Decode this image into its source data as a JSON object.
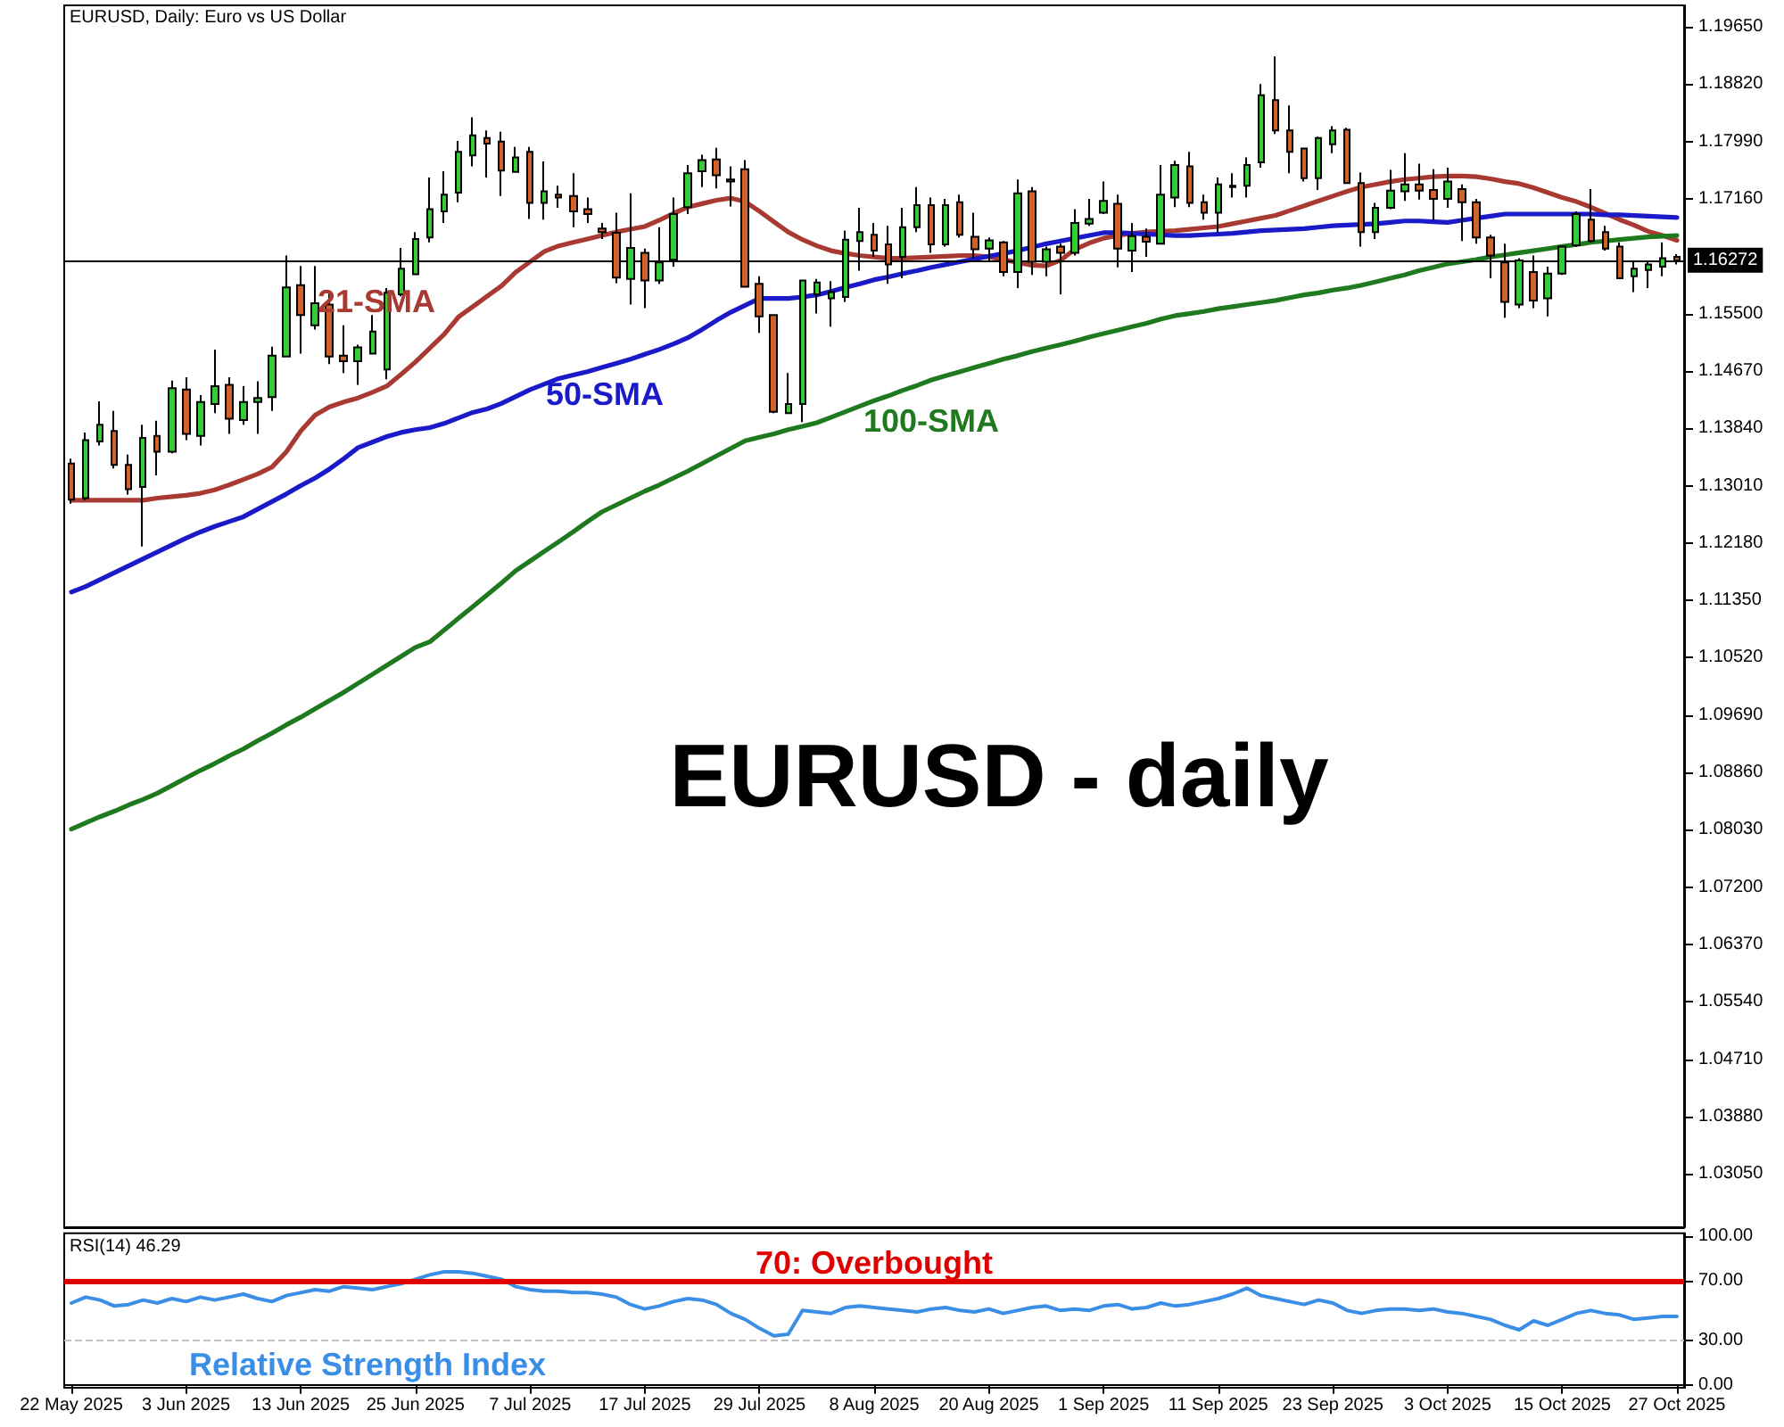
{
  "chart_data": [
    {
      "type": "candlestick",
      "title": "EURUSD, Daily: Euro vs US Dollar",
      "annotations": [
        "EURUSD - daily"
      ],
      "tick_labels": "y",
      "marker": "none",
      "categories": [
        null,
        null,
        null,
        null,
        null,
        null,
        null,
        null,
        null,
        null,
        null,
        null,
        null,
        null,
        null,
        null,
        null,
        null,
        null,
        null,
        null,
        null,
        null,
        null,
        null,
        null,
        null,
        null,
        null,
        null,
        null,
        null,
        null,
        null,
        null,
        null,
        null,
        null,
        null,
        null,
        null,
        null,
        null,
        null,
        null,
        null,
        null,
        null,
        null,
        null,
        null,
        null,
        null,
        null,
        null,
        null,
        null,
        null,
        null,
        null,
        null,
        null,
        null,
        null,
        null,
        null,
        null,
        null,
        null,
        null,
        null,
        null,
        null,
        null,
        null,
        null,
        null,
        null,
        null,
        null,
        null,
        null,
        null,
        null,
        null,
        null,
        null,
        null,
        null,
        null,
        null,
        null,
        null,
        null,
        null,
        null,
        null,
        null,
        null,
        null,
        null,
        null,
        null,
        null,
        null,
        null,
        null,
        null,
        null,
        null,
        null,
        null,
        null
      ],
      "ylim": [
        1.0228,
        1.1996
      ],
      "yticks": [
        {
          "value": 1.1965,
          "label": "1.19650"
        },
        {
          "value": 1.1882,
          "label": "1.18820"
        },
        {
          "value": 1.1799,
          "label": "1.17990"
        },
        {
          "value": 1.1716,
          "label": "1.17160"
        },
        {
          "value": 1.155,
          "label": "1.15500"
        },
        {
          "value": 1.1467,
          "label": "1.14670"
        },
        {
          "value": 1.1384,
          "label": "1.13840"
        },
        {
          "value": 1.1301,
          "label": "1.13010"
        },
        {
          "value": 1.1218,
          "label": "1.12180"
        },
        {
          "value": 1.1135,
          "label": "1.11350"
        },
        {
          "value": 1.1052,
          "label": "1.10520"
        },
        {
          "value": 1.0969,
          "label": "1.09690"
        },
        {
          "value": 1.0886,
          "label": "1.08860"
        },
        {
          "value": 1.0803,
          "label": "1.08030"
        },
        {
          "value": 1.072,
          "label": "1.07200"
        },
        {
          "value": 1.0637,
          "label": "1.06370"
        },
        {
          "value": 1.0554,
          "label": "1.05540"
        },
        {
          "value": 1.0471,
          "label": "1.04710"
        },
        {
          "value": 1.0388,
          "label": "1.03880"
        },
        {
          "value": 1.0305,
          "label": "1.03050"
        }
      ],
      "ref_lines": [
        {
          "axis": "y",
          "value": 1.16272,
          "label": "1.16272",
          "color": "#000000"
        }
      ],
      "ohlc": [
        [
          1.1333,
          1.134,
          1.1275,
          1.1281
        ],
        [
          1.1283,
          1.1378,
          1.128,
          1.1367
        ],
        [
          1.1365,
          1.1423,
          1.1359,
          1.1389
        ],
        [
          1.138,
          1.1409,
          1.1326,
          1.1331
        ],
        [
          1.1331,
          1.1346,
          1.1288,
          1.1296
        ],
        [
          1.1299,
          1.1389,
          1.1213,
          1.137
        ],
        [
          1.1373,
          1.1395,
          1.1316,
          1.135
        ],
        [
          1.135,
          1.1453,
          1.1348,
          1.1442
        ],
        [
          1.144,
          1.1458,
          1.1367,
          1.1376
        ],
        [
          1.1373,
          1.1432,
          1.1359,
          1.1422
        ],
        [
          1.1419,
          1.1498,
          1.1406,
          1.1445
        ],
        [
          1.1447,
          1.1458,
          1.1376,
          1.1398
        ],
        [
          1.1396,
          1.1445,
          1.1389,
          1.1422
        ],
        [
          1.1422,
          1.1452,
          1.1376,
          1.1428
        ],
        [
          1.1429,
          1.1502,
          1.1409,
          1.1489
        ],
        [
          1.1488,
          1.1634,
          1.1488,
          1.1588
        ],
        [
          1.1591,
          1.1619,
          1.1492,
          1.1548
        ],
        [
          1.1533,
          1.1619,
          1.1527,
          1.1565
        ],
        [
          1.1563,
          1.1582,
          1.1477,
          1.1488
        ],
        [
          1.1489,
          1.1533,
          1.1464,
          1.1481
        ],
        [
          1.1481,
          1.1505,
          1.1447,
          1.1501
        ],
        [
          1.1492,
          1.1548,
          1.1492,
          1.1524
        ],
        [
          1.1469,
          1.1587,
          1.1455,
          1.158
        ],
        [
          1.1578,
          1.1645,
          1.1575,
          1.1615
        ],
        [
          1.1607,
          1.1668,
          1.1607,
          1.1658
        ],
        [
          1.166,
          1.1747,
          1.1653,
          1.1701
        ],
        [
          1.1698,
          1.1756,
          1.1681,
          1.1722
        ],
        [
          1.1725,
          1.18,
          1.1711,
          1.1784
        ],
        [
          1.1779,
          1.1834,
          1.1763,
          1.1808
        ],
        [
          1.1804,
          1.1815,
          1.1747,
          1.1796
        ],
        [
          1.1799,
          1.1813,
          1.172,
          1.1757
        ],
        [
          1.1755,
          1.1791,
          1.1755,
          1.1776
        ],
        [
          1.1784,
          1.1791,
          1.1687,
          1.171
        ],
        [
          1.171,
          1.177,
          1.1686,
          1.1727
        ],
        [
          1.1722,
          1.1735,
          1.1703,
          1.1718
        ],
        [
          1.172,
          1.1753,
          1.1675,
          1.1698
        ],
        [
          1.1701,
          1.1718,
          1.1681,
          1.1694
        ],
        [
          1.1673,
          1.1681,
          1.1658,
          1.1668
        ],
        [
          1.1667,
          1.1696,
          1.1594,
          1.1602
        ],
        [
          1.16,
          1.1724,
          1.1563,
          1.1645
        ],
        [
          1.1638,
          1.1644,
          1.1558,
          1.1598
        ],
        [
          1.1598,
          1.1675,
          1.1593,
          1.1624
        ],
        [
          1.1628,
          1.1718,
          1.1618,
          1.1694
        ],
        [
          1.1704,
          1.1765,
          1.1694,
          1.1753
        ],
        [
          1.1756,
          1.178,
          1.1733,
          1.1772
        ],
        [
          1.1773,
          1.179,
          1.1731,
          1.175
        ],
        [
          1.1744,
          1.1763,
          1.1705,
          1.1741
        ],
        [
          1.1759,
          1.1772,
          1.1589,
          1.1589
        ],
        [
          1.1593,
          1.1604,
          1.1522,
          1.1546
        ],
        [
          1.1548,
          1.1549,
          1.1406,
          1.1408
        ],
        [
          1.1406,
          1.1464,
          1.1406,
          1.1419
        ],
        [
          1.1419,
          1.1598,
          1.1393,
          1.1598
        ],
        [
          1.1578,
          1.16,
          1.155,
          1.1595
        ],
        [
          1.1572,
          1.1597,
          1.1531,
          1.1581
        ],
        [
          1.1574,
          1.167,
          1.1567,
          1.1657
        ],
        [
          1.1655,
          1.1703,
          1.1612,
          1.1668
        ],
        [
          1.1664,
          1.1681,
          1.1632,
          1.1641
        ],
        [
          1.165,
          1.1677,
          1.1593,
          1.1621
        ],
        [
          1.1632,
          1.1703,
          1.1601,
          1.1675
        ],
        [
          1.1675,
          1.1733,
          1.1668,
          1.1707
        ],
        [
          1.1707,
          1.1718,
          1.1638,
          1.165
        ],
        [
          1.165,
          1.1716,
          1.1647,
          1.1707
        ],
        [
          1.1711,
          1.1722,
          1.166,
          1.1664
        ],
        [
          1.1661,
          1.1696,
          1.163,
          1.1643
        ],
        [
          1.1644,
          1.166,
          1.1625,
          1.1656
        ],
        [
          1.1653,
          1.1655,
          1.1604,
          1.161
        ],
        [
          1.161,
          1.1744,
          1.1587,
          1.1724
        ],
        [
          1.1727,
          1.1733,
          1.1606,
          1.1625
        ],
        [
          1.1625,
          1.1647,
          1.1604,
          1.1643
        ],
        [
          1.1647,
          1.1651,
          1.1578,
          1.1638
        ],
        [
          1.1638,
          1.1701,
          1.1634,
          1.1681
        ],
        [
          1.168,
          1.1716,
          1.1677,
          1.1687
        ],
        [
          1.1696,
          1.1741,
          1.1694,
          1.1713
        ],
        [
          1.1709,
          1.1722,
          1.1617,
          1.1644
        ],
        [
          1.1641,
          1.1681,
          1.161,
          1.1662
        ],
        [
          1.1661,
          1.1673,
          1.1632,
          1.1654
        ],
        [
          1.1651,
          1.1765,
          1.165,
          1.1722
        ],
        [
          1.1718,
          1.1771,
          1.1704,
          1.1765
        ],
        [
          1.1763,
          1.1784,
          1.1704,
          1.171
        ],
        [
          1.1711,
          1.1722,
          1.1686,
          1.1696
        ],
        [
          1.1696,
          1.1747,
          1.1668,
          1.1737
        ],
        [
          1.1735,
          1.1753,
          1.1718,
          1.1733
        ],
        [
          1.1735,
          1.1776,
          1.1718,
          1.1765
        ],
        [
          1.1769,
          1.1882,
          1.1761,
          1.1866
        ],
        [
          1.1859,
          1.1922,
          1.181,
          1.1815
        ],
        [
          1.1815,
          1.1851,
          1.1753,
          1.1784
        ],
        [
          1.1789,
          1.1789,
          1.1741,
          1.1746
        ],
        [
          1.1746,
          1.1806,
          1.1729,
          1.1804
        ],
        [
          1.1795,
          1.1821,
          1.1782,
          1.1815
        ],
        [
          1.1816,
          1.1819,
          1.1739,
          1.1739
        ],
        [
          1.1739,
          1.1754,
          1.1647,
          1.1668
        ],
        [
          1.1668,
          1.171,
          1.1658,
          1.1703
        ],
        [
          1.1703,
          1.1758,
          1.1701,
          1.1728
        ],
        [
          1.1727,
          1.1782,
          1.1713,
          1.1737
        ],
        [
          1.1737,
          1.1767,
          1.1715,
          1.1728
        ],
        [
          1.1729,
          1.1759,
          1.1685,
          1.1716
        ],
        [
          1.1716,
          1.1761,
          1.1703,
          1.1741
        ],
        [
          1.173,
          1.1737,
          1.1655,
          1.1711
        ],
        [
          1.1711,
          1.1716,
          1.1651,
          1.166
        ],
        [
          1.166,
          1.1664,
          1.1601,
          1.1634
        ],
        [
          1.1624,
          1.1651,
          1.1544,
          1.1567
        ],
        [
          1.1563,
          1.163,
          1.1558,
          1.1627
        ],
        [
          1.161,
          1.1634,
          1.1558,
          1.1569
        ],
        [
          1.1572,
          1.1618,
          1.1546,
          1.1608
        ],
        [
          1.1608,
          1.1647,
          1.1606,
          1.1647
        ],
        [
          1.1649,
          1.1698,
          1.1647,
          1.1694
        ],
        [
          1.1686,
          1.173,
          1.1653,
          1.1655
        ],
        [
          1.1668,
          1.1677,
          1.1641,
          1.1644
        ],
        [
          1.1647,
          1.1653,
          1.16,
          1.1601
        ],
        [
          1.1604,
          1.1625,
          1.1581,
          1.1615
        ],
        [
          1.1613,
          1.1627,
          1.1587,
          1.1621
        ],
        [
          1.1618,
          1.1653,
          1.1604,
          1.163
        ],
        [
          1.1632,
          1.1636,
          1.1621,
          1.1627
        ]
      ],
      "colors": [
        "#d2622a",
        "#33cc33",
        "#33cc33",
        "#d2622a",
        "#d2622a",
        "#33cc33",
        "#d2622a",
        "#33cc33",
        "#d2622a",
        "#33cc33",
        "#33cc33",
        "#d2622a",
        "#33cc33",
        "#33cc33",
        "#33cc33",
        "#33cc33",
        "#d2622a",
        "#33cc33",
        "#d2622a",
        "#d2622a",
        "#33cc33",
        "#33cc33",
        "#33cc33",
        "#33cc33",
        "#33cc33",
        "#33cc33",
        "#33cc33",
        "#33cc33",
        "#33cc33",
        "#d2622a",
        "#d2622a",
        "#33cc33",
        "#d2622a",
        "#33cc33",
        "#d2622a",
        "#d2622a",
        "#d2622a",
        "#d2622a",
        "#d2622a",
        "#33cc33",
        "#d2622a",
        "#33cc33",
        "#33cc33",
        "#33cc33",
        "#33cc33",
        "#d2622a",
        "#d2622a",
        "#d2622a",
        "#d2622a",
        "#d2622a",
        "#33cc33",
        "#33cc33",
        "#33cc33",
        "#33cc33",
        "#33cc33",
        "#33cc33",
        "#d2622a",
        "#d2622a",
        "#33cc33",
        "#33cc33",
        "#d2622a",
        "#33cc33",
        "#d2622a",
        "#d2622a",
        "#33cc33",
        "#d2622a",
        "#33cc33",
        "#d2622a",
        "#33cc33",
        "#d2622a",
        "#33cc33",
        "#33cc33",
        "#33cc33",
        "#d2622a",
        "#33cc33",
        "#d2622a",
        "#33cc33",
        "#33cc33",
        "#d2622a",
        "#d2622a",
        "#33cc33",
        "#d2622a",
        "#33cc33",
        "#33cc33",
        "#d2622a",
        "#d2622a",
        "#d2622a",
        "#33cc33",
        "#33cc33",
        "#d2622a",
        "#d2622a",
        "#33cc33",
        "#33cc33",
        "#33cc33",
        "#d2622a",
        "#d2622a",
        "#33cc33",
        "#d2622a",
        "#d2622a",
        "#d2622a",
        "#d2622a",
        "#33cc33",
        "#d2622a",
        "#33cc33",
        "#33cc33",
        "#33cc33",
        "#d2622a",
        "#d2622a",
        "#d2622a",
        "#33cc33",
        "#33cc33",
        "#33cc33",
        "#d2622a"
      ],
      "series": [
        {
          "type": "line",
          "name": "21-SMA",
          "color": "#a83a32",
          "values": [
            1.128,
            1.128,
            1.128,
            1.128,
            1.128,
            1.128,
            1.1283,
            1.1285,
            1.1287,
            1.129,
            1.1295,
            1.1302,
            1.131,
            1.1318,
            1.1328,
            1.135,
            1.138,
            1.1403,
            1.1415,
            1.1422,
            1.1428,
            1.1436,
            1.1445,
            1.1462,
            1.148,
            1.15,
            1.152,
            1.1545,
            1.156,
            1.1575,
            1.159,
            1.161,
            1.1625,
            1.164,
            1.1648,
            1.1653,
            1.1658,
            1.1663,
            1.1668,
            1.1672,
            1.1676,
            1.1685,
            1.1695,
            1.1704,
            1.1709,
            1.1714,
            1.1717,
            1.1712,
            1.1698,
            1.1683,
            1.1668,
            1.1657,
            1.1648,
            1.1641,
            1.1637,
            1.1634,
            1.1632,
            1.163,
            1.163,
            1.1631,
            1.1632,
            1.1633,
            1.1634,
            1.1634,
            1.1632,
            1.1628,
            1.1624,
            1.162,
            1.1619,
            1.1627,
            1.1643,
            1.1652,
            1.1659,
            1.1663,
            1.1666,
            1.1668,
            1.1669,
            1.167,
            1.1672,
            1.1674,
            1.1676,
            1.168,
            1.1684,
            1.1688,
            1.1692,
            1.1699,
            1.1706,
            1.1713,
            1.172,
            1.1727,
            1.1733,
            1.1737,
            1.1741,
            1.1744,
            1.1746,
            1.1748,
            1.1749,
            1.1749,
            1.1748,
            1.1745,
            1.1741,
            1.1738,
            1.1732,
            1.1725,
            1.1718,
            1.1712,
            1.1704,
            1.1695,
            1.1686,
            1.1678,
            1.1669,
            1.1663,
            1.1656
          ]
        },
        {
          "type": "line",
          "name": "50-SMA",
          "color": "#1a1ac8",
          "values": [
            1.1147,
            1.1155,
            1.1165,
            1.1175,
            1.1185,
            1.1195,
            1.1205,
            1.1215,
            1.1225,
            1.1234,
            1.1242,
            1.1249,
            1.1256,
            1.1267,
            1.1278,
            1.1289,
            1.1301,
            1.1312,
            1.1325,
            1.134,
            1.1356,
            1.1364,
            1.1372,
            1.1378,
            1.1382,
            1.1385,
            1.1391,
            1.1399,
            1.1407,
            1.1412,
            1.142,
            1.143,
            1.144,
            1.1448,
            1.1456,
            1.1461,
            1.1466,
            1.1472,
            1.1478,
            1.1484,
            1.1491,
            1.1498,
            1.1506,
            1.1515,
            1.1527,
            1.154,
            1.1552,
            1.1562,
            1.1572,
            1.1572,
            1.1572,
            1.1574,
            1.1577,
            1.1582,
            1.1588,
            1.1593,
            1.1599,
            1.1603,
            1.1608,
            1.1612,
            1.1617,
            1.1621,
            1.1625,
            1.1629,
            1.1633,
            1.1637,
            1.1641,
            1.1646,
            1.1651,
            1.1655,
            1.1659,
            1.1663,
            1.1667,
            1.1667,
            1.1666,
            1.1665,
            1.1664,
            1.1663,
            1.1663,
            1.1664,
            1.1665,
            1.1666,
            1.1668,
            1.167,
            1.1671,
            1.1672,
            1.1673,
            1.1675,
            1.1677,
            1.1678,
            1.1679,
            1.168,
            1.1682,
            1.1684,
            1.1684,
            1.1683,
            1.1682,
            1.1685,
            1.1688,
            1.1691,
            1.1694,
            1.1694,
            1.1694,
            1.1694,
            1.1694,
            1.1694,
            1.1694,
            1.1693,
            1.1693,
            1.1692,
            1.1691,
            1.169,
            1.1689
          ]
        },
        {
          "type": "line",
          "name": "100-SMA",
          "color": "#1f7a1f",
          "values": [
            1.0804,
            1.0813,
            1.0822,
            1.083,
            1.0839,
            1.0847,
            1.0856,
            1.0867,
            1.0878,
            1.0889,
            1.0899,
            1.091,
            1.092,
            1.0932,
            1.0943,
            1.0955,
            1.0966,
            1.0978,
            1.099,
            1.1002,
            1.1015,
            1.1028,
            1.1041,
            1.1054,
            1.1067,
            1.1075,
            1.1092,
            1.1109,
            1.1126,
            1.1143,
            1.116,
            1.1178,
            1.1192,
            1.1206,
            1.122,
            1.1234,
            1.1249,
            1.1263,
            1.1273,
            1.1283,
            1.1293,
            1.1302,
            1.1312,
            1.1322,
            1.1333,
            1.1344,
            1.1355,
            1.1366,
            1.1371,
            1.1376,
            1.1382,
            1.1387,
            1.1392,
            1.14,
            1.1408,
            1.1416,
            1.1424,
            1.1431,
            1.1439,
            1.1446,
            1.1454,
            1.146,
            1.1466,
            1.1472,
            1.1478,
            1.1484,
            1.1489,
            1.1495,
            1.15,
            1.1505,
            1.151,
            1.1516,
            1.1521,
            1.1526,
            1.1531,
            1.1536,
            1.1542,
            1.1547,
            1.155,
            1.1553,
            1.1557,
            1.156,
            1.1563,
            1.1566,
            1.1569,
            1.1573,
            1.1577,
            1.158,
            1.1584,
            1.1587,
            1.1591,
            1.1596,
            1.1601,
            1.1606,
            1.1612,
            1.1617,
            1.1622,
            1.1625,
            1.1628,
            1.1632,
            1.1635,
            1.1638,
            1.1641,
            1.1644,
            1.1647,
            1.165,
            1.1653,
            1.1655,
            1.1657,
            1.1659,
            1.1661,
            1.1662,
            1.1663
          ]
        }
      ]
    },
    {
      "type": "line",
      "title": "RSI(14) 46.29",
      "marker": "none",
      "categories": [
        "22 May 2025",
        null,
        null,
        null,
        null,
        null,
        null,
        null,
        "3 Jun 2025",
        null,
        null,
        null,
        null,
        null,
        null,
        null,
        "13 Jun 2025",
        null,
        null,
        null,
        null,
        null,
        null,
        null,
        "25 Jun 2025",
        null,
        null,
        null,
        null,
        null,
        null,
        null,
        "7 Jul 2025",
        null,
        null,
        null,
        null,
        null,
        null,
        null,
        "17 Jul 2025",
        null,
        null,
        null,
        null,
        null,
        null,
        null,
        "29 Jul 2025",
        null,
        null,
        null,
        null,
        null,
        null,
        null,
        "8 Aug 2025",
        null,
        null,
        null,
        null,
        null,
        null,
        null,
        "20 Aug 2025",
        null,
        null,
        null,
        null,
        null,
        null,
        null,
        "1 Sep 2025",
        null,
        null,
        null,
        null,
        null,
        null,
        null,
        "11 Sep 2025",
        null,
        null,
        null,
        null,
        null,
        null,
        null,
        "23 Sep 2025",
        null,
        null,
        null,
        null,
        null,
        null,
        null,
        "3 Oct 2025",
        null,
        null,
        null,
        null,
        null,
        null,
        null,
        "15 Oct 2025",
        null,
        null,
        null,
        null,
        null,
        null,
        null,
        "27 Oct 2025"
      ],
      "ylim": [
        -2,
        102
      ],
      "yticks": [
        {
          "value": 100,
          "label": "100.00"
        },
        {
          "value": 70,
          "label": "70.00"
        },
        {
          "value": 30,
          "label": "30.00"
        },
        {
          "value": 0,
          "label": "0.00"
        }
      ],
      "ref_lines": [
        {
          "axis": "y",
          "value": 70,
          "label": "70: Overbought",
          "color": "#e00000"
        },
        {
          "axis": "y",
          "value": 30,
          "color": "#c0c0c0",
          "line_style": "dashed"
        }
      ],
      "series": [
        {
          "name": "Relative Strength Index",
          "color": "#3a8ee6",
          "values": [
            55,
            59,
            57,
            53,
            54,
            57,
            55,
            58,
            56,
            59,
            57,
            59,
            61,
            58,
            56,
            60,
            62,
            64,
            63,
            66,
            65,
            64,
            66,
            68,
            71,
            74,
            76,
            76,
            75,
            73,
            71,
            66,
            64,
            63,
            63,
            62,
            62,
            61,
            59,
            54,
            51,
            53,
            56,
            58,
            57,
            54,
            48,
            44,
            38,
            33,
            34,
            50,
            49,
            48,
            52,
            53,
            52,
            51,
            50,
            49,
            51,
            52,
            50,
            49,
            51,
            48,
            50,
            52,
            53,
            50,
            51,
            50,
            53,
            54,
            51,
            52,
            55,
            53,
            54,
            56,
            58,
            61,
            65,
            60,
            58,
            56,
            54,
            57,
            55,
            50,
            48,
            50,
            51,
            51,
            50,
            51,
            49,
            48,
            46,
            44,
            40,
            37,
            43,
            40,
            44,
            48,
            50,
            48,
            47,
            44,
            45,
            46,
            46
          ]
        }
      ]
    }
  ]
}
